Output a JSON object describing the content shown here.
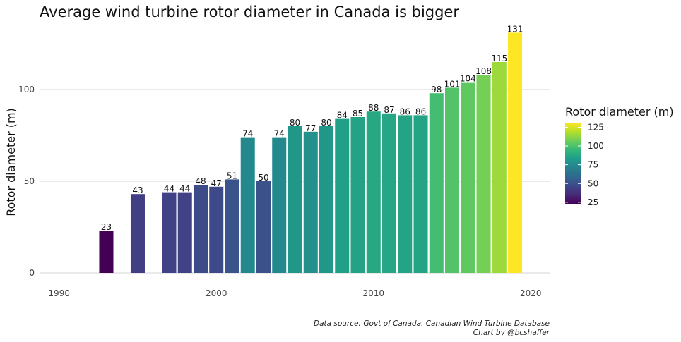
{
  "chart_data": {
    "type": "bar",
    "title": "Average wind turbine rotor diameter in Canada is bigger",
    "xlabel": "",
    "ylabel": "Rotor diameter (m)",
    "xlim": [
      1988.8,
      2021.2
    ],
    "ylim": [
      0,
      135
    ],
    "x_ticks": [
      "1990",
      "2000",
      "2010",
      "2020"
    ],
    "y_ticks": [
      "0",
      "50",
      "100"
    ],
    "grid": "horizontal",
    "x": [
      1993,
      1995,
      1997,
      1998,
      1999,
      2000,
      2001,
      2002,
      2003,
      2004,
      2005,
      2006,
      2007,
      2008,
      2009,
      2010,
      2011,
      2012,
      2013,
      2014,
      2015,
      2016,
      2017,
      2018,
      2019
    ],
    "values": [
      23,
      43,
      44,
      44,
      48,
      47,
      51,
      74,
      50,
      74,
      80,
      77,
      80,
      84,
      85,
      88,
      87,
      86,
      86,
      98,
      101,
      104,
      108,
      115,
      131
    ],
    "legend": {
      "title": "Rotor diameter (m)",
      "position": "right",
      "ticks": [
        "125",
        "100",
        "75",
        "50",
        "25"
      ],
      "range": [
        23,
        131
      ],
      "colormap": [
        "#440154",
        "#482878",
        "#3e4989",
        "#31688e",
        "#26828e",
        "#1f9e89",
        "#35b779",
        "#6ece58",
        "#b5de2b",
        "#fde725"
      ]
    }
  },
  "caption": {
    "line1": "Data source: Govt of Canada. Canadian Wind Turbine Database",
    "line2": "Chart by @bcshaffer"
  }
}
